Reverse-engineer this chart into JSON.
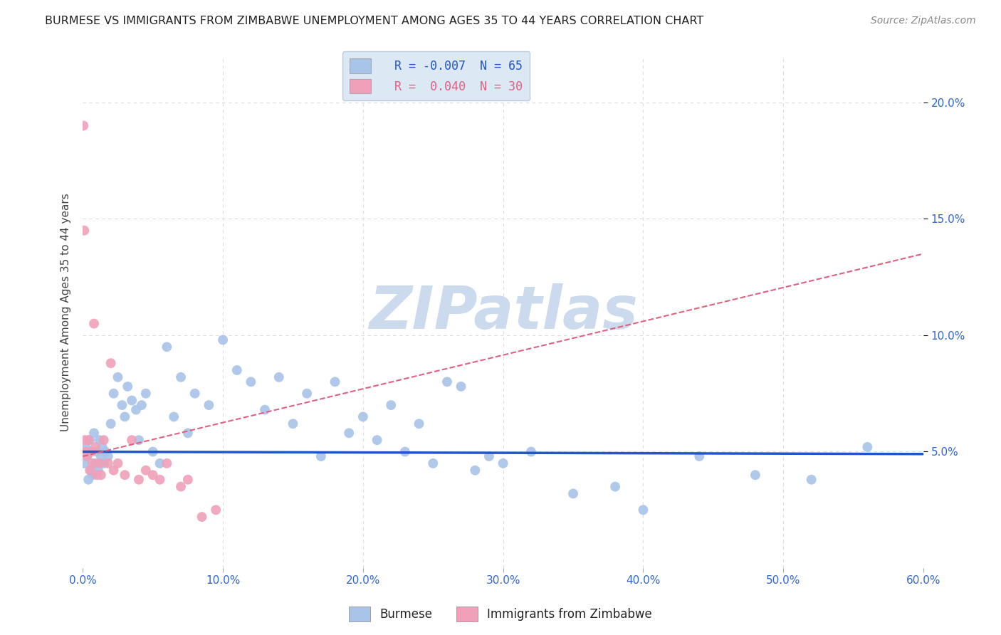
{
  "title": "BURMESE VS IMMIGRANTS FROM ZIMBABWE UNEMPLOYMENT AMONG AGES 35 TO 44 YEARS CORRELATION CHART",
  "source": "Source: ZipAtlas.com",
  "ylabel": "Unemployment Among Ages 35 to 44 years",
  "series": [
    {
      "name": "Burmese",
      "color": "#a8c4e8",
      "R": -0.007,
      "N": 65,
      "trend_color": "#2255cc",
      "trend_style": "solid",
      "trend_y0": 5.0,
      "trend_y1": 4.9,
      "x": [
        0.1,
        0.2,
        0.3,
        0.4,
        0.5,
        0.6,
        0.7,
        0.8,
        0.9,
        1.0,
        1.1,
        1.2,
        1.3,
        1.4,
        1.5,
        1.6,
        1.8,
        2.0,
        2.2,
        2.5,
        2.8,
        3.0,
        3.2,
        3.5,
        3.8,
        4.0,
        4.2,
        4.5,
        5.0,
        5.5,
        6.0,
        6.5,
        7.0,
        7.5,
        8.0,
        9.0,
        10.0,
        11.0,
        12.0,
        13.0,
        14.0,
        15.0,
        16.0,
        17.0,
        18.0,
        19.0,
        20.0,
        21.0,
        22.0,
        23.0,
        24.0,
        25.0,
        26.0,
        27.0,
        28.0,
        29.0,
        30.0,
        32.0,
        35.0,
        38.0,
        40.0,
        44.0,
        48.0,
        52.0,
        56.0
      ],
      "y": [
        4.5,
        5.2,
        4.8,
        3.8,
        5.5,
        4.2,
        4.0,
        5.8,
        4.5,
        5.0,
        4.2,
        5.5,
        4.8,
        5.2,
        4.5,
        5.0,
        4.8,
        6.2,
        7.5,
        8.2,
        7.0,
        6.5,
        7.8,
        7.2,
        6.8,
        5.5,
        7.0,
        7.5,
        5.0,
        4.5,
        9.5,
        6.5,
        8.2,
        5.8,
        7.5,
        7.0,
        9.8,
        8.5,
        8.0,
        6.8,
        8.2,
        6.2,
        7.5,
        4.8,
        8.0,
        5.8,
        6.5,
        5.5,
        7.0,
        5.0,
        6.2,
        4.5,
        8.0,
        7.8,
        4.2,
        4.8,
        4.5,
        5.0,
        3.2,
        3.5,
        2.5,
        4.8,
        4.0,
        3.8,
        5.2
      ]
    },
    {
      "name": "Immigrants from Zimbabwe",
      "color": "#f0a0b8",
      "R": 0.04,
      "N": 30,
      "trend_color": "#e06080",
      "trend_style": "dashed",
      "trend_y0": 4.8,
      "trend_y1": 13.5,
      "x": [
        0.05,
        0.1,
        0.15,
        0.2,
        0.3,
        0.4,
        0.5,
        0.6,
        0.7,
        0.8,
        0.9,
        1.0,
        1.2,
        1.3,
        1.5,
        1.8,
        2.0,
        2.2,
        2.5,
        3.0,
        3.5,
        4.0,
        4.5,
        5.0,
        5.5,
        6.0,
        7.0,
        7.5,
        8.5,
        9.5
      ],
      "y": [
        19.0,
        14.5,
        5.5,
        5.0,
        4.8,
        5.5,
        4.2,
        5.0,
        4.5,
        10.5,
        5.2,
        4.0,
        4.5,
        4.0,
        5.5,
        4.5,
        8.8,
        4.2,
        4.5,
        4.0,
        5.5,
        3.8,
        4.2,
        4.0,
        3.8,
        4.5,
        3.5,
        3.8,
        2.2,
        2.5
      ]
    }
  ],
  "xlim": [
    0,
    60
  ],
  "ylim": [
    0,
    22
  ],
  "x_ticks": [
    0,
    10,
    20,
    30,
    40,
    50,
    60
  ],
  "x_tick_labels": [
    "0.0%",
    "10.0%",
    "20.0%",
    "30.0%",
    "40.0%",
    "50.0%",
    "60.0%"
  ],
  "y_ticks": [
    0,
    5,
    10,
    15,
    20
  ],
  "right_y_tick_labels": [
    "5.0%",
    "10.0%",
    "15.0%",
    "20.0%"
  ],
  "right_y_tick_positions": [
    5,
    10,
    15,
    20
  ],
  "grid_color": "#dddddd",
  "grid_style": "dotted",
  "background_color": "#ffffff",
  "watermark_text": "ZIPatlas",
  "watermark_color": "#ccdaee",
  "legend_box_color": "#dde8f5",
  "title_color": "#222222",
  "axis_label_color": "#444444",
  "tick_color": "#3366cc",
  "source_color": "#888888",
  "bottom_legend_text_color": "#222222"
}
